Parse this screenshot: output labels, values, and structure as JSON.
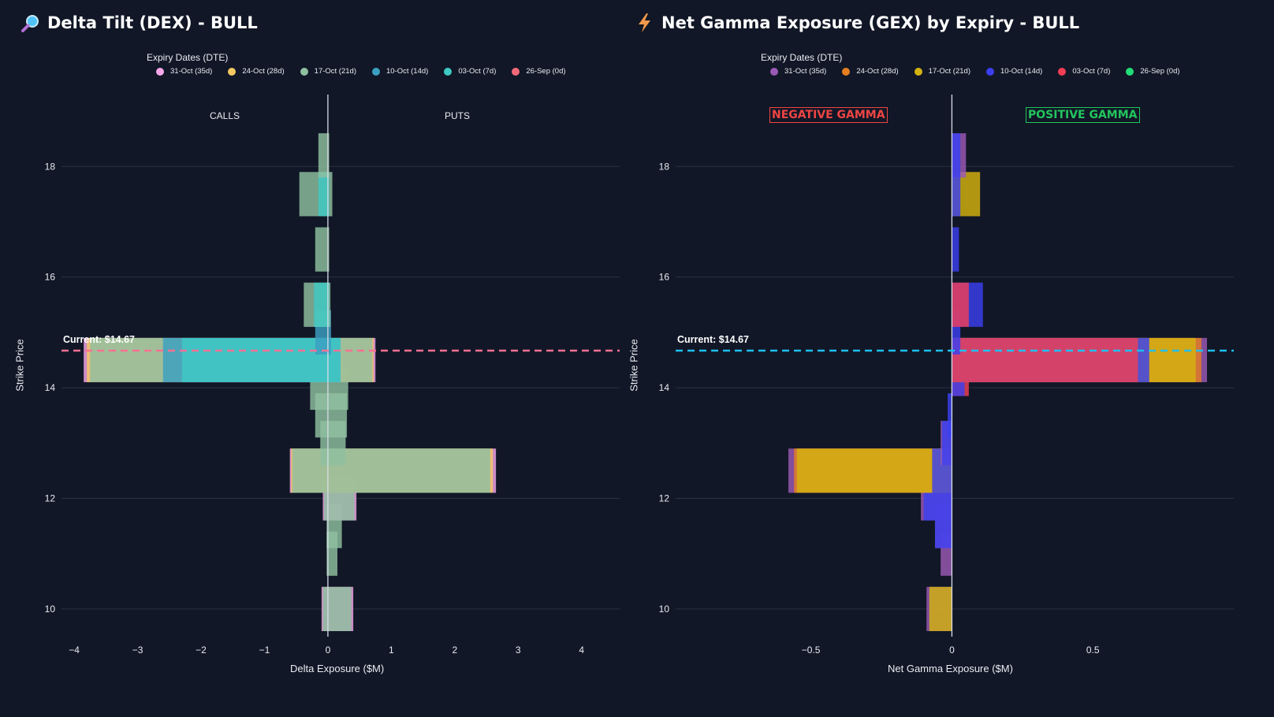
{
  "colors": {
    "background": "#111726",
    "grid": "#2a3242",
    "neg_label": "#ef4444",
    "pos_label": "#22c55e"
  },
  "chart_data": [
    {
      "type": "bar",
      "orientation": "horizontal",
      "title": "Delta Tilt (DEX) - BULL",
      "title_icon": "magnifier-icon",
      "xlabel": "Delta Exposure ($M)",
      "ylabel": "Strike Price",
      "xlim": [
        -4.2,
        4.6
      ],
      "ylim": [
        9.5,
        19.3
      ],
      "xticks": [
        -4,
        -3,
        -2,
        -1,
        0,
        1,
        2,
        3,
        4
      ],
      "xtick_labels": [
        "−4",
        "−3",
        "−2",
        "−1",
        "0",
        "1",
        "2",
        "3",
        "4"
      ],
      "yticks": [
        10,
        12,
        14,
        16,
        18
      ],
      "legend_title": "Expiry Dates (DTE)",
      "side_labels": [
        "CALLS",
        "PUTS"
      ],
      "current_price_label": "Current: $14.67",
      "current_price": 14.67,
      "current_line_color": "#f87193",
      "series": [
        {
          "name": "31-Oct (35d)",
          "color": "#f7a6e9"
        },
        {
          "name": "24-Oct (28d)",
          "color": "#f5c862"
        },
        {
          "name": "17-Oct (21d)",
          "color": "#8fc0a0"
        },
        {
          "name": "10-Oct (14d)",
          "color": "#3b9fc2"
        },
        {
          "name": "03-Oct (7d)",
          "color": "#3ec9c4"
        },
        {
          "name": "26-Sep (0d)",
          "color": "#f26a79"
        }
      ],
      "bars": [
        {
          "strike": 10,
          "series": "31-Oct (35d)",
          "from": -0.1,
          "to": 0.4
        },
        {
          "strike": 10,
          "series": "17-Oct (21d)",
          "from": -0.08,
          "to": 0.37
        },
        {
          "strike": 11,
          "series": "17-Oct (21d)",
          "from": -0.02,
          "to": 0.15
        },
        {
          "strike": 11.5,
          "series": "17-Oct (21d)",
          "from": -0.02,
          "to": 0.22
        },
        {
          "strike": 12,
          "series": "31-Oct (35d)",
          "from": -0.08,
          "to": 0.45
        },
        {
          "strike": 12,
          "series": "17-Oct (21d)",
          "from": -0.06,
          "to": 0.42
        },
        {
          "strike": 12.5,
          "series": "31-Oct (35d)",
          "from": -0.6,
          "to": 2.65
        },
        {
          "strike": 12.5,
          "series": "24-Oct (28d)",
          "from": -0.58,
          "to": 2.6
        },
        {
          "strike": 12.5,
          "series": "17-Oct (21d)",
          "from": -0.56,
          "to": 2.56
        },
        {
          "strike": 13,
          "series": "17-Oct (21d)",
          "from": -0.12,
          "to": 0.28
        },
        {
          "strike": 13.5,
          "series": "17-Oct (21d)",
          "from": -0.2,
          "to": 0.3
        },
        {
          "strike": 14,
          "series": "17-Oct (21d)",
          "from": -0.28,
          "to": 0.32
        },
        {
          "strike": 14.5,
          "series": "31-Oct (35d)",
          "from": -3.85,
          "to": 0.75
        },
        {
          "strike": 14.5,
          "series": "24-Oct (28d)",
          "from": -3.8,
          "to": 0.72
        },
        {
          "strike": 14.5,
          "series": "17-Oct (21d)",
          "from": -3.75,
          "to": 0.7
        },
        {
          "strike": 14.5,
          "series": "10-Oct (14d)",
          "from": -2.6,
          "to": 0.2
        },
        {
          "strike": 14.5,
          "series": "03-Oct (7d)",
          "from": -2.3,
          "to": 0.2
        },
        {
          "strike": 15,
          "series": "10-Oct (14d)",
          "from": -0.2,
          "to": 0.05
        },
        {
          "strike": 15.5,
          "series": "17-Oct (21d)",
          "from": -0.38,
          "to": 0.04
        },
        {
          "strike": 15.5,
          "series": "03-Oct (7d)",
          "from": -0.22,
          "to": 0.02
        },
        {
          "strike": 16.5,
          "series": "17-Oct (21d)",
          "from": -0.2,
          "to": 0.02
        },
        {
          "strike": 17.5,
          "series": "17-Oct (21d)",
          "from": -0.45,
          "to": 0.07
        },
        {
          "strike": 17.5,
          "series": "03-Oct (7d)",
          "from": -0.15,
          "to": 0.02
        },
        {
          "strike": 18.2,
          "series": "17-Oct (21d)",
          "from": -0.15,
          "to": 0.02
        }
      ]
    },
    {
      "type": "bar",
      "orientation": "horizontal",
      "title": "Net Gamma Exposure (GEX) by Expiry - BULL",
      "title_icon": "lightning-icon",
      "xlabel": "Net Gamma Exposure ($M)",
      "ylabel": "Strike Price",
      "xlim": [
        -0.98,
        1.0
      ],
      "ylim": [
        9.5,
        19.3
      ],
      "xticks": [
        -0.5,
        0,
        0.5
      ],
      "xtick_labels": [
        "−0.5",
        "0",
        "0.5"
      ],
      "yticks": [
        10,
        12,
        14,
        16,
        18
      ],
      "legend_title": "Expiry Dates (DTE)",
      "neg_label": "NEGATIVE GAMMA",
      "pos_label": "POSITIVE GAMMA",
      "current_price_label": "Current: $14.67",
      "current_price": 14.67,
      "current_line_color": "#1ec0f0",
      "series": [
        {
          "name": "31-Oct (35d)",
          "color": "#9b59b6"
        },
        {
          "name": "24-Oct (28d)",
          "color": "#e67e22"
        },
        {
          "name": "17-Oct (21d)",
          "color": "#d4b20f"
        },
        {
          "name": "10-Oct (14d)",
          "color": "#3b3ff0"
        },
        {
          "name": "03-Oct (7d)",
          "color": "#f03e55"
        },
        {
          "name": "26-Sep (0d)",
          "color": "#22dd77"
        }
      ],
      "bars": [
        {
          "strike": 10,
          "series": "31-Oct (35d)",
          "from": -0.09,
          "to": 0
        },
        {
          "strike": 10,
          "series": "17-Oct (21d)",
          "from": -0.08,
          "to": 0
        },
        {
          "strike": 11,
          "series": "31-Oct (35d)",
          "from": -0.04,
          "to": 0
        },
        {
          "strike": 11.5,
          "series": "31-Oct (35d)",
          "from": -0.06,
          "to": 0
        },
        {
          "strike": 11.5,
          "series": "10-Oct (14d)",
          "from": -0.06,
          "to": 0
        },
        {
          "strike": 12,
          "series": "31-Oct (35d)",
          "from": -0.11,
          "to": 0
        },
        {
          "strike": 12,
          "series": "10-Oct (14d)",
          "from": -0.1,
          "to": 0
        },
        {
          "strike": 12.5,
          "series": "31-Oct (35d)",
          "from": -0.58,
          "to": 0
        },
        {
          "strike": 12.5,
          "series": "24-Oct (28d)",
          "from": -0.56,
          "to": 0
        },
        {
          "strike": 12.5,
          "series": "17-Oct (21d)",
          "from": -0.55,
          "to": 0
        },
        {
          "strike": 12.5,
          "series": "10-Oct (14d)",
          "from": -0.07,
          "to": 0
        },
        {
          "strike": 13,
          "series": "31-Oct (35d)",
          "from": -0.04,
          "to": 0
        },
        {
          "strike": 13,
          "series": "10-Oct (14d)",
          "from": -0.035,
          "to": 0
        },
        {
          "strike": 13.5,
          "series": "10-Oct (14d)",
          "from": -0.015,
          "to": 0
        },
        {
          "strike": 14.25,
          "series": "03-Oct (7d)",
          "from": 0,
          "to": 0.06
        },
        {
          "strike": 14.25,
          "series": "10-Oct (14d)",
          "from": 0,
          "to": 0.045
        },
        {
          "strike": 14.5,
          "series": "31-Oct (35d)",
          "from": 0,
          "to": 0.905
        },
        {
          "strike": 14.5,
          "series": "24-Oct (28d)",
          "from": 0,
          "to": 0.885
        },
        {
          "strike": 14.5,
          "series": "17-Oct (21d)",
          "from": 0,
          "to": 0.865
        },
        {
          "strike": 14.5,
          "series": "10-Oct (14d)",
          "from": 0,
          "to": 0.7
        },
        {
          "strike": 14.5,
          "series": "03-Oct (7d)",
          "from": 0,
          "to": 0.66
        },
        {
          "strike": 15,
          "series": "10-Oct (14d)",
          "from": 0,
          "to": 0.03
        },
        {
          "strike": 15.5,
          "series": "10-Oct (14d)",
          "from": 0,
          "to": 0.11
        },
        {
          "strike": 15.5,
          "series": "03-Oct (7d)",
          "from": 0,
          "to": 0.06
        },
        {
          "strike": 16.5,
          "series": "10-Oct (14d)",
          "from": 0,
          "to": 0.025
        },
        {
          "strike": 17.5,
          "series": "17-Oct (21d)",
          "from": 0,
          "to": 0.1
        },
        {
          "strike": 17.5,
          "series": "10-Oct (14d)",
          "from": 0,
          "to": 0.03
        },
        {
          "strike": 18.2,
          "series": "31-Oct (35d)",
          "from": 0,
          "to": 0.05
        },
        {
          "strike": 18.2,
          "series": "10-Oct (14d)",
          "from": 0,
          "to": 0.03
        }
      ]
    }
  ]
}
